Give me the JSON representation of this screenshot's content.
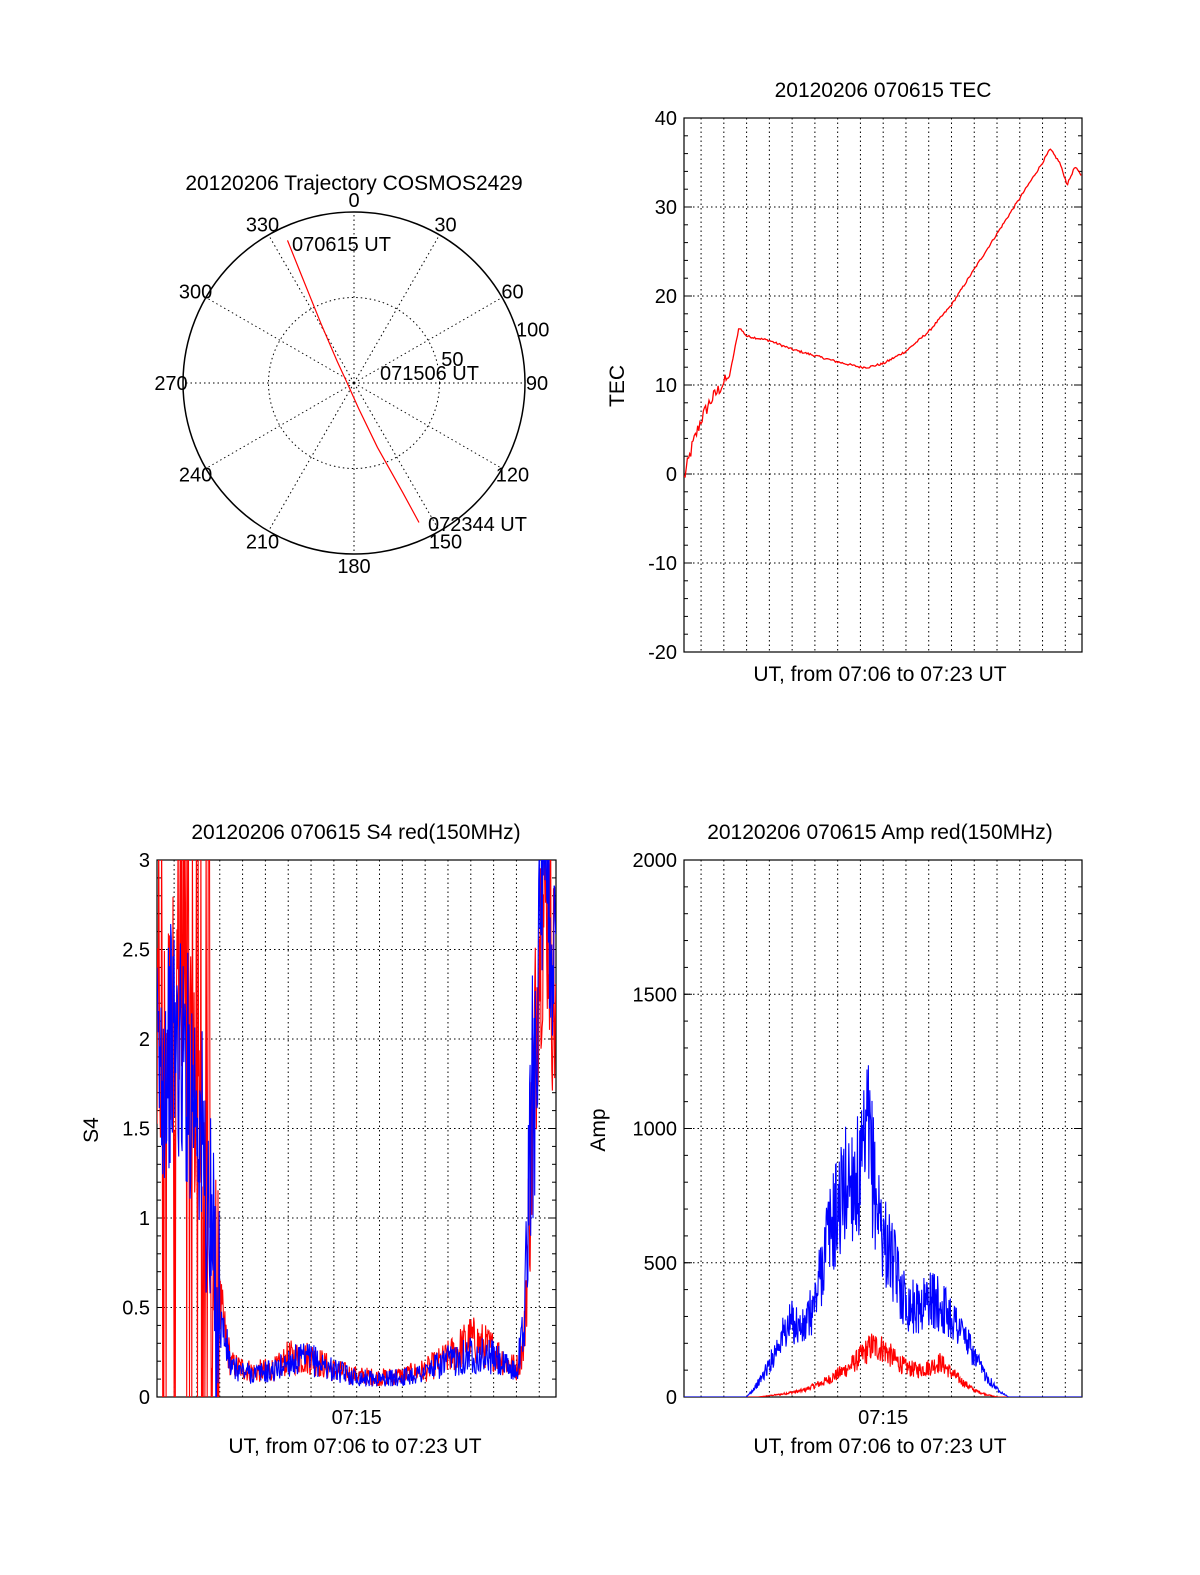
{
  "colors": {
    "red": "#ff0000",
    "blue": "#0000ff",
    "axis": "#000000",
    "grid": "#000000",
    "background": "#ffffff"
  },
  "chart_data": [
    {
      "type": "polar",
      "title": "20120206 Trajectory COSMOS2429",
      "angle_labels": [
        "0",
        "30",
        "60",
        "90",
        "120",
        "150",
        "180",
        "210",
        "240",
        "270",
        "300",
        "330"
      ],
      "radial_labels": [
        "50",
        "100"
      ],
      "radial_range": [
        0,
        100
      ],
      "annotations": [
        "070615 UT",
        "071506 UT",
        "072344 UT"
      ],
      "trajectory": {
        "color": "red",
        "points": [
          {
            "azimuth": 335,
            "radius": 92
          },
          {
            "azimuth": 334,
            "radius": 70
          },
          {
            "azimuth": 331,
            "radius": 40
          },
          {
            "azimuth": 322,
            "radius": 16
          },
          {
            "azimuth": 270,
            "radius": 4
          },
          {
            "azimuth": 170,
            "radius": 15
          },
          {
            "azimuth": 160,
            "radius": 40
          },
          {
            "azimuth": 156,
            "radius": 70
          },
          {
            "azimuth": 155,
            "radius": 90
          }
        ]
      },
      "grid": true
    },
    {
      "type": "line",
      "title": "20120206 070615 TEC",
      "xlabel": "UT, from 07:06 to 07:23 UT",
      "ylabel": "TEC",
      "xlim": [
        "07:06:15",
        "07:23:44"
      ],
      "ylim": [
        -20,
        40
      ],
      "yticks": [
        "-20",
        "-10",
        "0",
        "10",
        "20",
        "30",
        "40"
      ],
      "grid": true,
      "series": [
        {
          "color": "red",
          "x": [
            "07:06:15",
            "07:06:36",
            "07:06:59",
            "07:07:22",
            "07:07:55",
            "07:08:15",
            "07:08:40",
            "07:09:00",
            "07:10:00",
            "07:11:00",
            "07:12:00",
            "07:13:00",
            "07:14:00",
            "07:14:20",
            "07:15:00",
            "07:16:00",
            "07:17:00",
            "07:18:00",
            "07:19:00",
            "07:20:00",
            "07:21:00",
            "07:22:00",
            "07:22:20",
            "07:22:45",
            "07:23:05",
            "07:23:25",
            "07:23:44"
          ],
          "values": [
            -0.5,
            3,
            6,
            8,
            10,
            11,
            16.5,
            15.5,
            15,
            14,
            13.3,
            12.6,
            12,
            12,
            12.4,
            13.8,
            16,
            19,
            23,
            27,
            31,
            35,
            36.5,
            35,
            32.5,
            34.5,
            33.5
          ]
        }
      ]
    },
    {
      "type": "line",
      "title": "20120206 070615 S4 red(150MHz)",
      "xlabel": "UT, from 07:06 to 07:23 UT",
      "ylabel": "S4",
      "xlim": [
        "07:06:15",
        "07:23:44"
      ],
      "ylim": [
        0,
        3
      ],
      "yticks": [
        "0",
        "0.5",
        "1",
        "1.5",
        "2",
        "2.5",
        "3"
      ],
      "xticks": [
        "07:15"
      ],
      "grid": true,
      "series": [
        {
          "color": "red",
          "x": [
            "07:06:15",
            "07:07:00",
            "07:08:00",
            "07:08:50",
            "07:09:30",
            "07:10:30",
            "07:11:30",
            "07:12:00",
            "07:13:00",
            "07:14:00",
            "07:15:00",
            "07:16:00",
            "07:17:00",
            "07:18:00",
            "07:19:00",
            "07:20:00",
            "07:21:00",
            "07:21:30",
            "07:22:00",
            "07:22:20",
            "07:22:40",
            "07:23:00",
            "07:23:20",
            "07:23:44"
          ],
          "values": [
            1.8,
            2.2,
            1.6,
            0.6,
            0.18,
            0.14,
            0.16,
            0.22,
            0.22,
            0.15,
            0.12,
            0.11,
            0.12,
            0.15,
            0.22,
            0.32,
            0.26,
            0.2,
            0.16,
            0.3,
            1.4,
            2.6,
            2.8,
            2.1
          ]
        },
        {
          "color": "blue",
          "x": [
            "07:06:15",
            "07:07:00",
            "07:08:00",
            "07:08:50",
            "07:09:30",
            "07:10:30",
            "07:11:30",
            "07:12:00",
            "07:13:00",
            "07:14:00",
            "07:15:00",
            "07:16:00",
            "07:17:00",
            "07:18:00",
            "07:19:00",
            "07:20:00",
            "07:21:00",
            "07:21:30",
            "07:22:00",
            "07:22:20",
            "07:22:40",
            "07:23:00",
            "07:23:20",
            "07:23:44"
          ],
          "values": [
            1.8,
            2.0,
            1.7,
            0.55,
            0.16,
            0.13,
            0.15,
            0.2,
            0.21,
            0.15,
            0.11,
            0.1,
            0.11,
            0.14,
            0.2,
            0.24,
            0.22,
            0.17,
            0.14,
            0.4,
            1.6,
            2.5,
            2.8,
            2.4
          ]
        }
      ]
    },
    {
      "type": "line",
      "title": "20120206 070615 Amp red(150MHz)",
      "xlabel": "UT, from 07:06 to 07:23 UT",
      "ylabel": "Amp",
      "xlim": [
        "07:06:15",
        "07:23:44"
      ],
      "ylim": [
        0,
        2000
      ],
      "yticks": [
        "0",
        "500",
        "1000",
        "1500",
        "2000"
      ],
      "xticks": [
        "07:15"
      ],
      "grid": true,
      "series": [
        {
          "color": "red",
          "x": [
            "07:06:15",
            "07:09:30",
            "07:10:30",
            "07:11:30",
            "07:12:30",
            "07:13:30",
            "07:14:00",
            "07:14:30",
            "07:15:00",
            "07:15:30",
            "07:16:00",
            "07:16:30",
            "07:17:00",
            "07:17:30",
            "07:18:00",
            "07:18:30",
            "07:19:00",
            "07:19:30",
            "07:20:00",
            "07:23:44"
          ],
          "values": [
            0,
            0,
            10,
            25,
            60,
            110,
            150,
            190,
            180,
            140,
            110,
            100,
            110,
            130,
            90,
            55,
            25,
            10,
            0,
            0
          ]
        },
        {
          "color": "blue",
          "x": [
            "07:06:15",
            "07:09:00",
            "07:09:30",
            "07:10:00",
            "07:10:30",
            "07:11:00",
            "07:11:30",
            "07:12:00",
            "07:12:30",
            "07:13:00",
            "07:13:30",
            "07:14:00",
            "07:14:20",
            "07:14:40",
            "07:15:00",
            "07:15:30",
            "07:16:00",
            "07:16:30",
            "07:17:00",
            "07:17:30",
            "07:18:00",
            "07:18:30",
            "07:19:00",
            "07:19:30",
            "07:20:00",
            "07:20:30",
            "07:23:44"
          ],
          "values": [
            0,
            0,
            50,
            120,
            220,
            280,
            250,
            350,
            580,
            700,
            820,
            800,
            980,
            750,
            600,
            480,
            350,
            330,
            370,
            340,
            300,
            240,
            150,
            80,
            30,
            0,
            0
          ]
        }
      ]
    }
  ]
}
